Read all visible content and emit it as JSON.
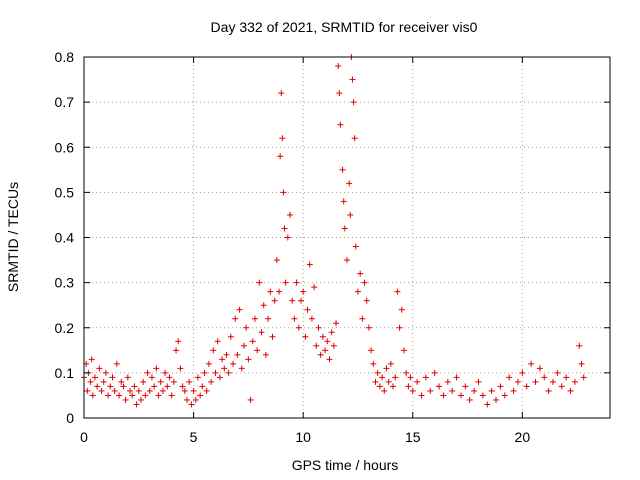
{
  "chart_data": {
    "type": "scatter",
    "title": "Day 332 of 2021, SRMTID for receiver vis0",
    "xlabel": "GPS time / hours",
    "ylabel": "SRMTID / TECUs",
    "xlim": [
      0,
      24
    ],
    "ylim": [
      0,
      0.8
    ],
    "xticks": [
      0,
      5,
      10,
      15,
      20
    ],
    "yticks": [
      0,
      0.1,
      0.2,
      0.3,
      0.4,
      0.5,
      0.6,
      0.7,
      0.8
    ],
    "xtick_labels": [
      "0",
      "5",
      "10",
      "15",
      "20"
    ],
    "ytick_labels": [
      "0",
      "0.1",
      "0.2",
      "0.3",
      "0.4",
      "0.5",
      "0.6",
      "0.7",
      "0.8"
    ],
    "grid": true,
    "marker": "+",
    "color": "#e00000",
    "series": [
      {
        "name": "vis0",
        "points": [
          [
            0.0,
            0.09
          ],
          [
            0.1,
            0.12
          ],
          [
            0.15,
            0.06
          ],
          [
            0.2,
            0.1
          ],
          [
            0.3,
            0.08
          ],
          [
            0.35,
            0.13
          ],
          [
            0.4,
            0.05
          ],
          [
            0.5,
            0.09
          ],
          [
            0.6,
            0.07
          ],
          [
            0.7,
            0.11
          ],
          [
            0.8,
            0.06
          ],
          [
            0.9,
            0.08
          ],
          [
            1.0,
            0.1
          ],
          [
            1.1,
            0.05
          ],
          [
            1.2,
            0.07
          ],
          [
            1.3,
            0.09
          ],
          [
            1.4,
            0.06
          ],
          [
            1.5,
            0.12
          ],
          [
            1.6,
            0.05
          ],
          [
            1.7,
            0.08
          ],
          [
            1.8,
            0.07
          ],
          [
            1.9,
            0.04
          ],
          [
            2.0,
            0.09
          ],
          [
            2.1,
            0.06
          ],
          [
            2.2,
            0.05
          ],
          [
            2.3,
            0.07
          ],
          [
            2.4,
            0.03
          ],
          [
            2.5,
            0.06
          ],
          [
            2.6,
            0.04
          ],
          [
            2.7,
            0.08
          ],
          [
            2.8,
            0.05
          ],
          [
            2.9,
            0.1
          ],
          [
            3.0,
            0.06
          ],
          [
            3.1,
            0.09
          ],
          [
            3.2,
            0.07
          ],
          [
            3.3,
            0.11
          ],
          [
            3.4,
            0.05
          ],
          [
            3.5,
            0.08
          ],
          [
            3.6,
            0.06
          ],
          [
            3.7,
            0.1
          ],
          [
            3.8,
            0.07
          ],
          [
            3.9,
            0.09
          ],
          [
            4.0,
            0.05
          ],
          [
            4.1,
            0.08
          ],
          [
            4.2,
            0.15
          ],
          [
            4.3,
            0.17
          ],
          [
            4.4,
            0.11
          ],
          [
            4.5,
            0.07
          ],
          [
            4.6,
            0.06
          ],
          [
            4.7,
            0.04
          ],
          [
            4.8,
            0.08
          ],
          [
            4.9,
            0.03
          ],
          [
            5.0,
            0.06
          ],
          [
            5.1,
            0.04
          ],
          [
            5.2,
            0.09
          ],
          [
            5.3,
            0.05
          ],
          [
            5.4,
            0.07
          ],
          [
            5.5,
            0.1
          ],
          [
            5.6,
            0.06
          ],
          [
            5.7,
            0.12
          ],
          [
            5.8,
            0.08
          ],
          [
            5.9,
            0.15
          ],
          [
            6.0,
            0.1
          ],
          [
            6.1,
            0.17
          ],
          [
            6.2,
            0.09
          ],
          [
            6.3,
            0.13
          ],
          [
            6.4,
            0.11
          ],
          [
            6.5,
            0.14
          ],
          [
            6.6,
            0.1
          ],
          [
            6.7,
            0.18
          ],
          [
            6.8,
            0.12
          ],
          [
            6.9,
            0.22
          ],
          [
            7.0,
            0.14
          ],
          [
            7.1,
            0.24
          ],
          [
            7.2,
            0.11
          ],
          [
            7.3,
            0.16
          ],
          [
            7.4,
            0.2
          ],
          [
            7.5,
            0.13
          ],
          [
            7.6,
            0.04
          ],
          [
            7.7,
            0.17
          ],
          [
            7.8,
            0.22
          ],
          [
            7.9,
            0.15
          ],
          [
            8.0,
            0.3
          ],
          [
            8.1,
            0.19
          ],
          [
            8.2,
            0.25
          ],
          [
            8.3,
            0.14
          ],
          [
            8.4,
            0.22
          ],
          [
            8.5,
            0.28
          ],
          [
            8.6,
            0.18
          ],
          [
            8.7,
            0.26
          ],
          [
            8.8,
            0.35
          ],
          [
            8.9,
            0.28
          ],
          [
            8.95,
            0.58
          ],
          [
            9.0,
            0.72
          ],
          [
            9.05,
            0.62
          ],
          [
            9.1,
            0.5
          ],
          [
            9.15,
            0.42
          ],
          [
            9.2,
            0.3
          ],
          [
            9.3,
            0.4
          ],
          [
            9.4,
            0.45
          ],
          [
            9.5,
            0.26
          ],
          [
            9.6,
            0.22
          ],
          [
            9.7,
            0.3
          ],
          [
            9.8,
            0.2
          ],
          [
            9.9,
            0.26
          ],
          [
            10.0,
            0.28
          ],
          [
            10.1,
            0.18
          ],
          [
            10.2,
            0.24
          ],
          [
            10.3,
            0.34
          ],
          [
            10.4,
            0.22
          ],
          [
            10.5,
            0.29
          ],
          [
            10.6,
            0.16
          ],
          [
            10.7,
            0.2
          ],
          [
            10.8,
            0.14
          ],
          [
            10.9,
            0.18
          ],
          [
            11.0,
            0.15
          ],
          [
            11.1,
            0.17
          ],
          [
            11.2,
            0.13
          ],
          [
            11.3,
            0.19
          ],
          [
            11.4,
            0.16
          ],
          [
            11.5,
            0.21
          ],
          [
            11.6,
            0.78
          ],
          [
            11.65,
            0.72
          ],
          [
            11.7,
            0.65
          ],
          [
            11.8,
            0.55
          ],
          [
            11.85,
            0.48
          ],
          [
            11.9,
            0.42
          ],
          [
            12.0,
            0.35
          ],
          [
            12.1,
            0.52
          ],
          [
            12.15,
            0.45
          ],
          [
            12.2,
            0.8
          ],
          [
            12.25,
            0.75
          ],
          [
            12.3,
            0.7
          ],
          [
            12.35,
            0.62
          ],
          [
            12.4,
            0.38
          ],
          [
            12.5,
            0.28
          ],
          [
            12.6,
            0.32
          ],
          [
            12.7,
            0.22
          ],
          [
            12.8,
            0.3
          ],
          [
            12.9,
            0.26
          ],
          [
            13.0,
            0.2
          ],
          [
            13.1,
            0.15
          ],
          [
            13.2,
            0.12
          ],
          [
            13.3,
            0.08
          ],
          [
            13.4,
            0.1
          ],
          [
            13.5,
            0.07
          ],
          [
            13.6,
            0.09
          ],
          [
            13.7,
            0.06
          ],
          [
            13.8,
            0.11
          ],
          [
            13.9,
            0.08
          ],
          [
            14.0,
            0.12
          ],
          [
            14.1,
            0.07
          ],
          [
            14.2,
            0.09
          ],
          [
            14.3,
            0.28
          ],
          [
            14.4,
            0.2
          ],
          [
            14.5,
            0.24
          ],
          [
            14.6,
            0.15
          ],
          [
            14.7,
            0.1
          ],
          [
            14.8,
            0.07
          ],
          [
            14.9,
            0.09
          ],
          [
            15.0,
            0.06
          ],
          [
            15.2,
            0.08
          ],
          [
            15.4,
            0.05
          ],
          [
            15.6,
            0.09
          ],
          [
            15.8,
            0.06
          ],
          [
            16.0,
            0.1
          ],
          [
            16.2,
            0.07
          ],
          [
            16.4,
            0.05
          ],
          [
            16.6,
            0.08
          ],
          [
            16.8,
            0.06
          ],
          [
            17.0,
            0.09
          ],
          [
            17.2,
            0.05
          ],
          [
            17.4,
            0.07
          ],
          [
            17.6,
            0.04
          ],
          [
            17.8,
            0.06
          ],
          [
            18.0,
            0.08
          ],
          [
            18.2,
            0.05
          ],
          [
            18.4,
            0.03
          ],
          [
            18.6,
            0.06
          ],
          [
            18.8,
            0.04
          ],
          [
            19.0,
            0.07
          ],
          [
            19.2,
            0.05
          ],
          [
            19.4,
            0.09
          ],
          [
            19.6,
            0.06
          ],
          [
            19.8,
            0.08
          ],
          [
            20.0,
            0.1
          ],
          [
            20.2,
            0.07
          ],
          [
            20.4,
            0.12
          ],
          [
            20.6,
            0.08
          ],
          [
            20.8,
            0.11
          ],
          [
            21.0,
            0.09
          ],
          [
            21.2,
            0.06
          ],
          [
            21.4,
            0.08
          ],
          [
            21.6,
            0.1
          ],
          [
            21.8,
            0.07
          ],
          [
            22.0,
            0.09
          ],
          [
            22.2,
            0.06
          ],
          [
            22.4,
            0.08
          ],
          [
            22.6,
            0.16
          ],
          [
            22.7,
            0.12
          ],
          [
            22.8,
            0.09
          ]
        ]
      }
    ]
  }
}
